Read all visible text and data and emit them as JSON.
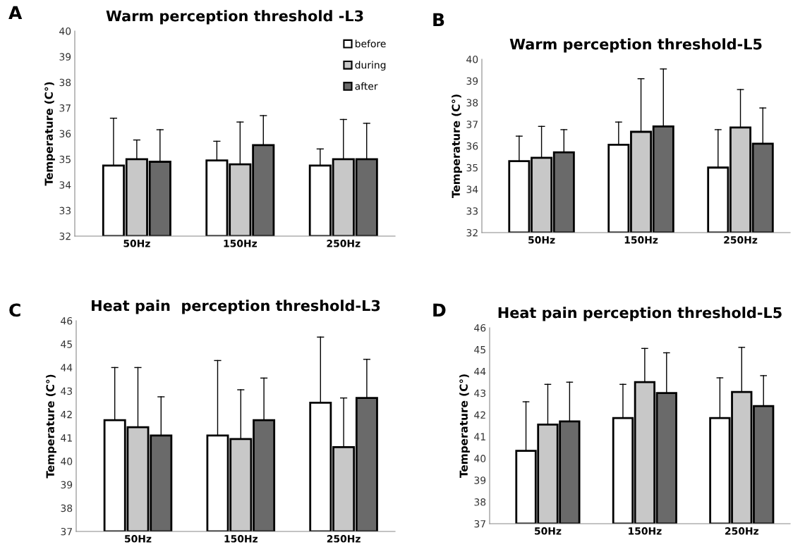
{
  "chart_data": [
    {
      "type": "bar",
      "title": "Warm perception threshold -L3",
      "ylabel": "Temperature (C°)",
      "annotations": [
        "A"
      ],
      "categories": [
        "50Hz",
        "150Hz",
        "250Hz"
      ],
      "ylim": [
        32,
        40
      ],
      "yticks": [
        32,
        33,
        34,
        35,
        36,
        37,
        38,
        39,
        40
      ],
      "grid": false,
      "legend": "top right",
      "series": [
        {
          "name": "before",
          "color": "#ffffff",
          "values": [
            34.75,
            34.95,
            34.75
          ],
          "errors": [
            [
              34.75,
              36.6
            ],
            [
              34.95,
              35.7
            ],
            [
              34.75,
              35.4
            ]
          ]
        },
        {
          "name": "during",
          "color": "#c8c8c8",
          "values": [
            35.0,
            34.8,
            35.0
          ],
          "errors": [
            [
              35.0,
              35.75
            ],
            [
              34.8,
              36.45
            ],
            [
              35.0,
              36.55
            ]
          ]
        },
        {
          "name": "after",
          "color": "#6a6a6a",
          "values": [
            34.9,
            35.55,
            35.0
          ],
          "errors": [
            [
              34.9,
              36.15
            ],
            [
              35.55,
              36.7
            ],
            [
              35.0,
              36.4
            ]
          ]
        }
      ]
    },
    {
      "type": "bar",
      "title": "Warm perception threshold-L5",
      "ylabel": "Temperature (C°)",
      "annotations": [
        "B"
      ],
      "categories": [
        "50Hz",
        "150Hz",
        "250Hz"
      ],
      "ylim": [
        32,
        40
      ],
      "yticks": [
        32,
        33,
        34,
        35,
        36,
        37,
        38,
        39,
        40
      ],
      "grid": false,
      "series": [
        {
          "color": "#ffffff",
          "values": [
            35.3,
            36.05,
            35.0
          ],
          "errors": [
            [
              35.3,
              36.45
            ],
            [
              36.05,
              37.1
            ],
            [
              35.0,
              36.75
            ]
          ]
        },
        {
          "color": "#c8c8c8",
          "values": [
            35.45,
            36.65,
            36.85
          ],
          "errors": [
            [
              35.45,
              36.9
            ],
            [
              36.65,
              39.1
            ],
            [
              36.85,
              38.6
            ]
          ]
        },
        {
          "color": "#6a6a6a",
          "values": [
            35.7,
            36.9,
            36.1
          ],
          "errors": [
            [
              35.7,
              36.75
            ],
            [
              36.9,
              39.55
            ],
            [
              36.1,
              37.75
            ]
          ]
        }
      ]
    },
    {
      "type": "bar",
      "title": "Heat pain  perception threshold-L3",
      "ylabel": "Temperature (C°)",
      "annotations": [
        "C"
      ],
      "categories": [
        "50Hz",
        "150Hz",
        "250Hz"
      ],
      "ylim": [
        37,
        46
      ],
      "yticks": [
        37,
        38,
        39,
        40,
        41,
        42,
        43,
        44,
        45,
        46
      ],
      "grid": false,
      "series": [
        {
          "color": "#ffffff",
          "values": [
            41.75,
            41.1,
            42.5
          ],
          "errors": [
            [
              41.75,
              44.0
            ],
            [
              41.1,
              44.3
            ],
            [
              42.5,
              45.3
            ]
          ]
        },
        {
          "color": "#c8c8c8",
          "values": [
            41.45,
            40.95,
            40.6
          ],
          "errors": [
            [
              41.45,
              44.0
            ],
            [
              40.95,
              43.05
            ],
            [
              40.6,
              42.7
            ]
          ]
        },
        {
          "color": "#6a6a6a",
          "values": [
            41.1,
            41.75,
            42.7
          ],
          "errors": [
            [
              41.1,
              42.75
            ],
            [
              41.75,
              43.55
            ],
            [
              42.7,
              44.35
            ]
          ]
        }
      ]
    },
    {
      "type": "bar",
      "title": "Heat pain perception threshold-L5",
      "ylabel": "Temperature (C°)",
      "annotations": [
        "D"
      ],
      "categories": [
        "50Hz",
        "150Hz",
        "250Hz"
      ],
      "ylim": [
        37,
        46
      ],
      "yticks": [
        37,
        38,
        39,
        40,
        41,
        42,
        43,
        44,
        45,
        46
      ],
      "grid": false,
      "series": [
        {
          "color": "#ffffff",
          "values": [
            40.35,
            41.85,
            41.85
          ],
          "errors": [
            [
              40.35,
              42.6
            ],
            [
              41.85,
              43.4
            ],
            [
              41.85,
              43.7
            ]
          ]
        },
        {
          "color": "#c8c8c8",
          "values": [
            41.55,
            43.5,
            43.05
          ],
          "errors": [
            [
              41.55,
              43.4
            ],
            [
              43.5,
              45.05
            ],
            [
              43.05,
              45.1
            ]
          ]
        },
        {
          "color": "#6a6a6a",
          "values": [
            41.7,
            43.0,
            42.4
          ],
          "errors": [
            [
              41.7,
              43.5
            ],
            [
              43.0,
              44.85
            ],
            [
              42.4,
              43.8
            ]
          ]
        }
      ]
    }
  ]
}
